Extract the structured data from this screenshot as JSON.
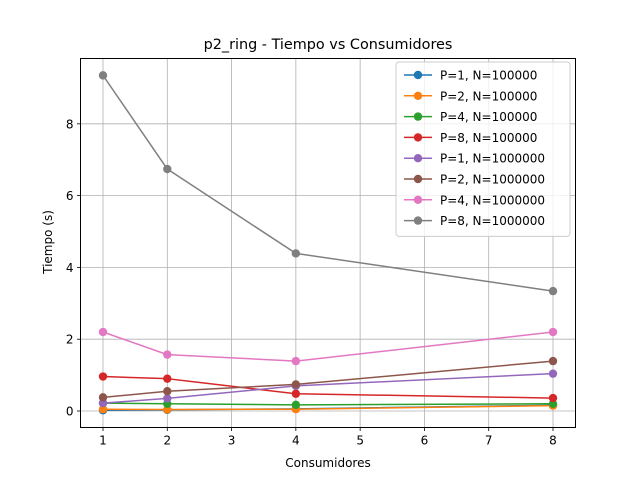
{
  "chart_data": {
    "type": "line",
    "title": "p2_ring - Tiempo vs Consumidores",
    "xlabel": "Consumidores",
    "ylabel": "Tiempo (s)",
    "x": [
      1,
      2,
      4,
      8
    ],
    "xticks": [
      "1",
      "2",
      "3",
      "4",
      "5",
      "6",
      "7",
      "8"
    ],
    "yticks": [
      "0",
      "2",
      "4",
      "6",
      "8"
    ],
    "xlim": [
      0.65,
      8.35
    ],
    "ylim": [
      -0.46,
      9.82
    ],
    "grid": true,
    "legend_position": "upper right",
    "series": [
      {
        "name": "P=1, N=100000",
        "color": "#1f77b4",
        "values": [
          0.02,
          0.03,
          0.06,
          0.16
        ]
      },
      {
        "name": "P=2, N=100000",
        "color": "#ff7f0e",
        "values": [
          0.05,
          0.04,
          0.05,
          0.15
        ]
      },
      {
        "name": "P=4, N=100000",
        "color": "#2ca02c",
        "values": [
          0.22,
          0.2,
          0.17,
          0.2
        ]
      },
      {
        "name": "P=8, N=100000",
        "color": "#d62728",
        "values": [
          0.96,
          0.9,
          0.48,
          0.36
        ]
      },
      {
        "name": "P=1, N=1000000",
        "color": "#9467bd",
        "values": [
          0.22,
          0.35,
          0.7,
          1.04
        ]
      },
      {
        "name": "P=2, N=1000000",
        "color": "#8c564b",
        "values": [
          0.38,
          0.55,
          0.74,
          1.39
        ]
      },
      {
        "name": "P=4, N=1000000",
        "color": "#e377c2",
        "values": [
          2.2,
          1.57,
          1.39,
          2.2
        ]
      },
      {
        "name": "P=8, N=1000000",
        "color": "#7f7f7f",
        "values": [
          9.35,
          6.74,
          4.39,
          3.34
        ]
      }
    ]
  }
}
